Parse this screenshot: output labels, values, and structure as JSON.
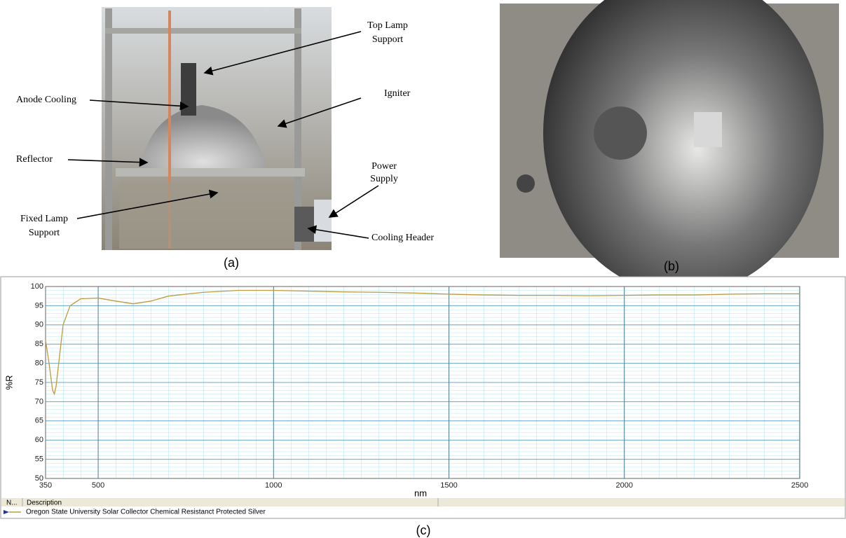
{
  "panels": [
    {
      "caption": "(a)",
      "labels": {
        "top_lamp_support": [
          "Top Lamp",
          "Support"
        ],
        "anode_cooling": "Anode Cooling",
        "igniter": "Igniter",
        "reflector": "Reflector",
        "power_supply": [
          "Power",
          "Supply"
        ],
        "fixed_lamp_support": [
          "Fixed Lamp",
          "Support"
        ],
        "cooling_header": "Cooling Header"
      }
    },
    {
      "caption": "(b)"
    },
    {
      "caption": "(c)"
    }
  ],
  "legend_table": {
    "headers": [
      "N...",
      "Description"
    ]
  },
  "chart_data": {
    "type": "line",
    "xlabel": "nm",
    "ylabel": "%R",
    "x": [
      350,
      360,
      370,
      375,
      380,
      390,
      400,
      420,
      450,
      500,
      550,
      600,
      650,
      700,
      800,
      900,
      1000,
      1100,
      1200,
      1300,
      1400,
      1500,
      1600,
      1700,
      1800,
      1900,
      2000,
      2100,
      2200,
      2300,
      2400,
      2500
    ],
    "series": [
      {
        "name": "Oregon State University Solar Collector Chemical Resistanct Protected Silver",
        "color": "#c09a3c",
        "values": [
          86,
          80,
          73,
          72,
          74,
          82,
          90,
          95,
          96.8,
          97,
          96.2,
          95.5,
          96.2,
          97.5,
          98.5,
          99,
          99,
          98.8,
          98.6,
          98.5,
          98.3,
          98,
          97.8,
          97.7,
          97.7,
          97.6,
          97.7,
          97.8,
          97.8,
          98,
          98.1,
          98.1
        ]
      }
    ],
    "xlim": [
      350,
      2500
    ],
    "xticks": [
      350,
      500,
      1000,
      1500,
      2000,
      2500
    ],
    "ylim": [
      50,
      100
    ],
    "yticks": [
      50,
      55,
      60,
      65,
      70,
      75,
      80,
      85,
      90,
      95,
      100
    ],
    "grid": true
  }
}
